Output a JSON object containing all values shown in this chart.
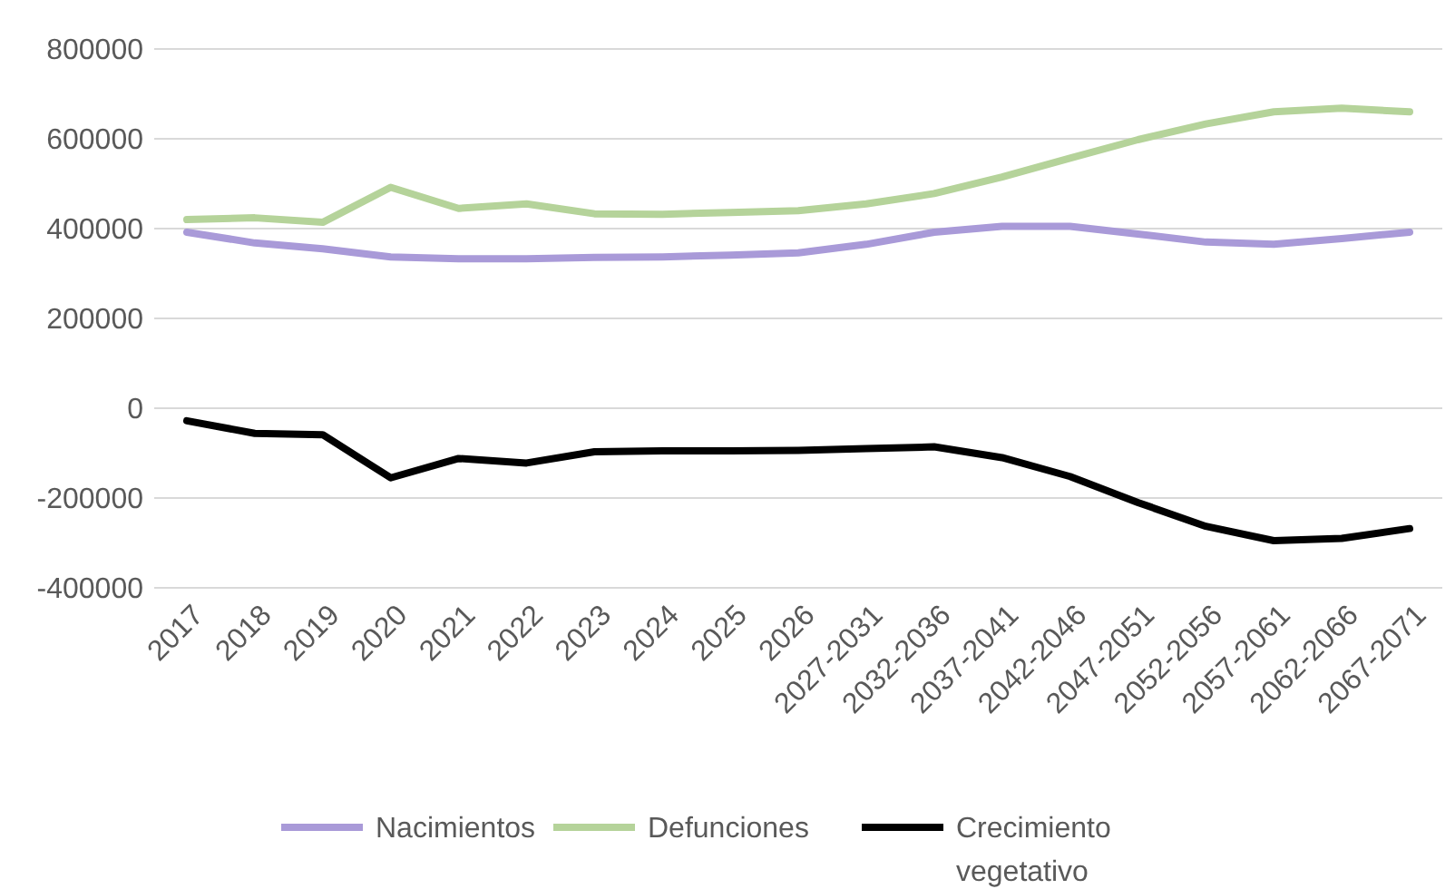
{
  "chart_data": {
    "type": "line",
    "categories": [
      "2017",
      "2018",
      "2019",
      "2020",
      "2021",
      "2022",
      "2023",
      "2024",
      "2025",
      "2026",
      "2027-2031",
      "2032-2036",
      "2037-2041",
      "2042-2046",
      "2047-2051",
      "2052-2056",
      "2057-2061",
      "2062-2066",
      "2067-2071"
    ],
    "series": [
      {
        "name": "Nacimientos",
        "color": "#a99ad8",
        "values": [
          392000,
          368000,
          355000,
          337000,
          333000,
          333000,
          336000,
          337000,
          341000,
          346000,
          365000,
          392000,
          405000,
          405000,
          388000,
          370000,
          365000,
          378000,
          392000
        ]
      },
      {
        "name": "Defunciones",
        "color": "#b5d39a",
        "values": [
          420000,
          424000,
          414000,
          492000,
          445000,
          455000,
          433000,
          432000,
          436000,
          440000,
          455000,
          478000,
          515000,
          557000,
          598000,
          633000,
          660000,
          668000,
          660000
        ]
      },
      {
        "name": "Crecimiento vegetativo",
        "color": "#000000",
        "values": [
          -28000,
          -56000,
          -59000,
          -155000,
          -112000,
          -122000,
          -97000,
          -95000,
          -95000,
          -94000,
          -90000,
          -86000,
          -110000,
          -152000,
          -210000,
          -263000,
          -295000,
          -290000,
          -268000
        ]
      }
    ],
    "ylim": [
      -400000,
      800000
    ],
    "yticks": [
      -400000,
      -200000,
      0,
      200000,
      400000,
      600000,
      800000
    ],
    "grid": "y",
    "legend": "bottom",
    "marker": "none",
    "line_style": "solid"
  }
}
